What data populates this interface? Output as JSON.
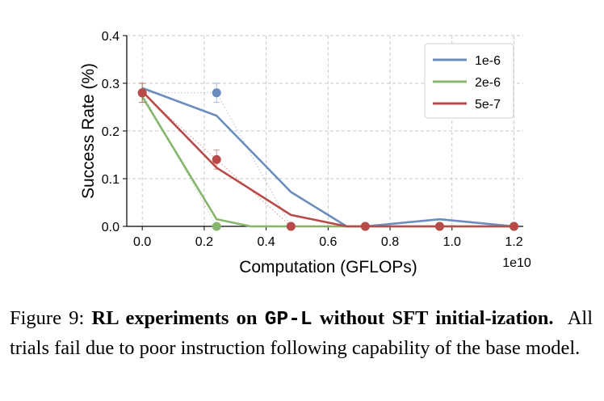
{
  "chart_data": {
    "type": "line",
    "xlabel": "Computation (GFLOPs)",
    "ylabel": "Success Rate (%)",
    "x_offset_label": "1e10",
    "xlim": [
      -0.05,
      1.23
    ],
    "ylim": [
      0.0,
      0.4
    ],
    "x_ticks": [
      0.0,
      0.2,
      0.4,
      0.6,
      0.8,
      1.0,
      1.2
    ],
    "x_tick_labels": [
      "0.0",
      "0.2",
      "0.4",
      "0.6",
      "0.8",
      "1.0",
      "1.2"
    ],
    "y_ticks": [
      0.0,
      0.1,
      0.2,
      0.3,
      0.4
    ],
    "y_tick_labels": [
      "0.0",
      "0.1",
      "0.2",
      "0.3",
      "0.4"
    ],
    "grid": true,
    "legend_position": "top-right",
    "series": [
      {
        "name": "1e-6",
        "color": "#6a8dbe",
        "smoothed": [
          [
            0.0,
            0.29
          ],
          [
            0.24,
            0.232
          ],
          [
            0.48,
            0.072
          ],
          [
            0.66,
            0.0
          ],
          [
            0.72,
            0.0
          ],
          [
            0.96,
            0.015
          ],
          [
            1.2,
            0.0
          ]
        ],
        "points": [
          [
            0.0,
            0.28
          ],
          [
            0.24,
            0.28
          ],
          [
            0.48,
            0.0
          ],
          [
            0.72,
            0.0
          ],
          [
            0.96,
            0.0
          ],
          [
            1.2,
            0.0
          ]
        ],
        "error": [
          0.02,
          0.02,
          0,
          0,
          0,
          0
        ]
      },
      {
        "name": "2e-6",
        "color": "#86b66b",
        "smoothed": [
          [
            0.0,
            0.272
          ],
          [
            0.24,
            0.015
          ],
          [
            0.35,
            0.0
          ],
          [
            1.2,
            0.0
          ]
        ],
        "points": [
          [
            0.0,
            0.28
          ],
          [
            0.24,
            0.0
          ]
        ],
        "error": [
          0.02,
          0
        ]
      },
      {
        "name": "5e-7",
        "color": "#b84a48",
        "smoothed": [
          [
            0.0,
            0.283
          ],
          [
            0.24,
            0.123
          ],
          [
            0.48,
            0.024
          ],
          [
            0.66,
            0.0
          ],
          [
            1.2,
            0.0
          ]
        ],
        "points": [
          [
            0.0,
            0.28
          ],
          [
            0.24,
            0.14
          ],
          [
            0.48,
            0.0
          ],
          [
            0.72,
            0.0
          ],
          [
            0.96,
            0.0
          ],
          [
            1.2,
            0.0
          ]
        ],
        "error": [
          0.02,
          0.02,
          0,
          0,
          0,
          0
        ]
      }
    ]
  },
  "caption": {
    "figure_label": "Figure 9:",
    "bold_lead_1": "RL experiments on",
    "mono_term": "GP-L",
    "bold_lead_2": "without SFT initial-ization.",
    "body": "All trials fail due to poor instruction following capability of the base model."
  }
}
